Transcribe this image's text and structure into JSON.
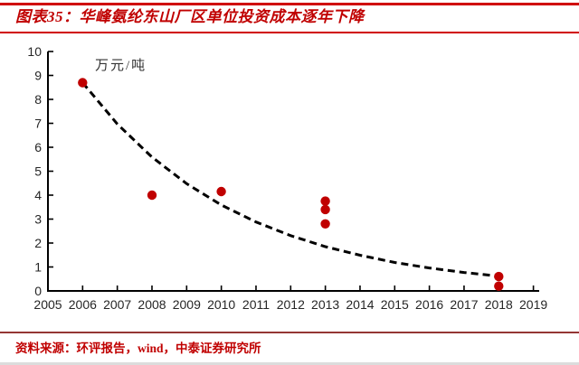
{
  "header": {
    "title": "图表35：华峰氨纶东山厂区单位投资成本逐年下降"
  },
  "footer": {
    "source": "资料来源：环评报告，wind，中泰证券研究所"
  },
  "colors": {
    "accent_red": "#C00000",
    "rule_red": "#D00000",
    "rule_dark_red": "#943634",
    "point_red": "#C00000",
    "axis_black": "#000000",
    "tick_label_gray": "#262626"
  },
  "chart_data": {
    "type": "scatter",
    "title": "华峰氨纶东山厂区单位投资成本逐年下降",
    "unit_label": "万元/吨",
    "xlabel": "",
    "ylabel": "万元/吨",
    "xlim": [
      2005,
      2019
    ],
    "ylim": [
      0,
      10
    ],
    "grid": false,
    "legend": null,
    "x_ticks": [
      2005,
      2006,
      2007,
      2008,
      2009,
      2010,
      2011,
      2012,
      2013,
      2014,
      2015,
      2016,
      2017,
      2018,
      2019
    ],
    "y_ticks": [
      0,
      1,
      2,
      3,
      4,
      5,
      6,
      7,
      8,
      9,
      10
    ],
    "points": [
      {
        "x": 2006,
        "y": 8.7
      },
      {
        "x": 2008,
        "y": 4.0
      },
      {
        "x": 2010,
        "y": 4.15
      },
      {
        "x": 2013,
        "y": 3.75
      },
      {
        "x": 2013,
        "y": 3.4
      },
      {
        "x": 2013,
        "y": 2.8
      },
      {
        "x": 2018,
        "y": 0.6
      },
      {
        "x": 2018,
        "y": 0.2
      }
    ],
    "trendline": {
      "style": "dashed",
      "color": "#000000",
      "points": [
        [
          2006,
          8.7
        ],
        [
          2007,
          6.97
        ],
        [
          2008,
          5.59
        ],
        [
          2009,
          4.48
        ],
        [
          2010,
          3.59
        ],
        [
          2011,
          2.88
        ],
        [
          2012,
          2.31
        ],
        [
          2013,
          1.85
        ],
        [
          2014,
          1.49
        ],
        [
          2015,
          1.19
        ],
        [
          2016,
          0.96
        ],
        [
          2017,
          0.77
        ],
        [
          2018,
          0.62
        ]
      ]
    }
  }
}
